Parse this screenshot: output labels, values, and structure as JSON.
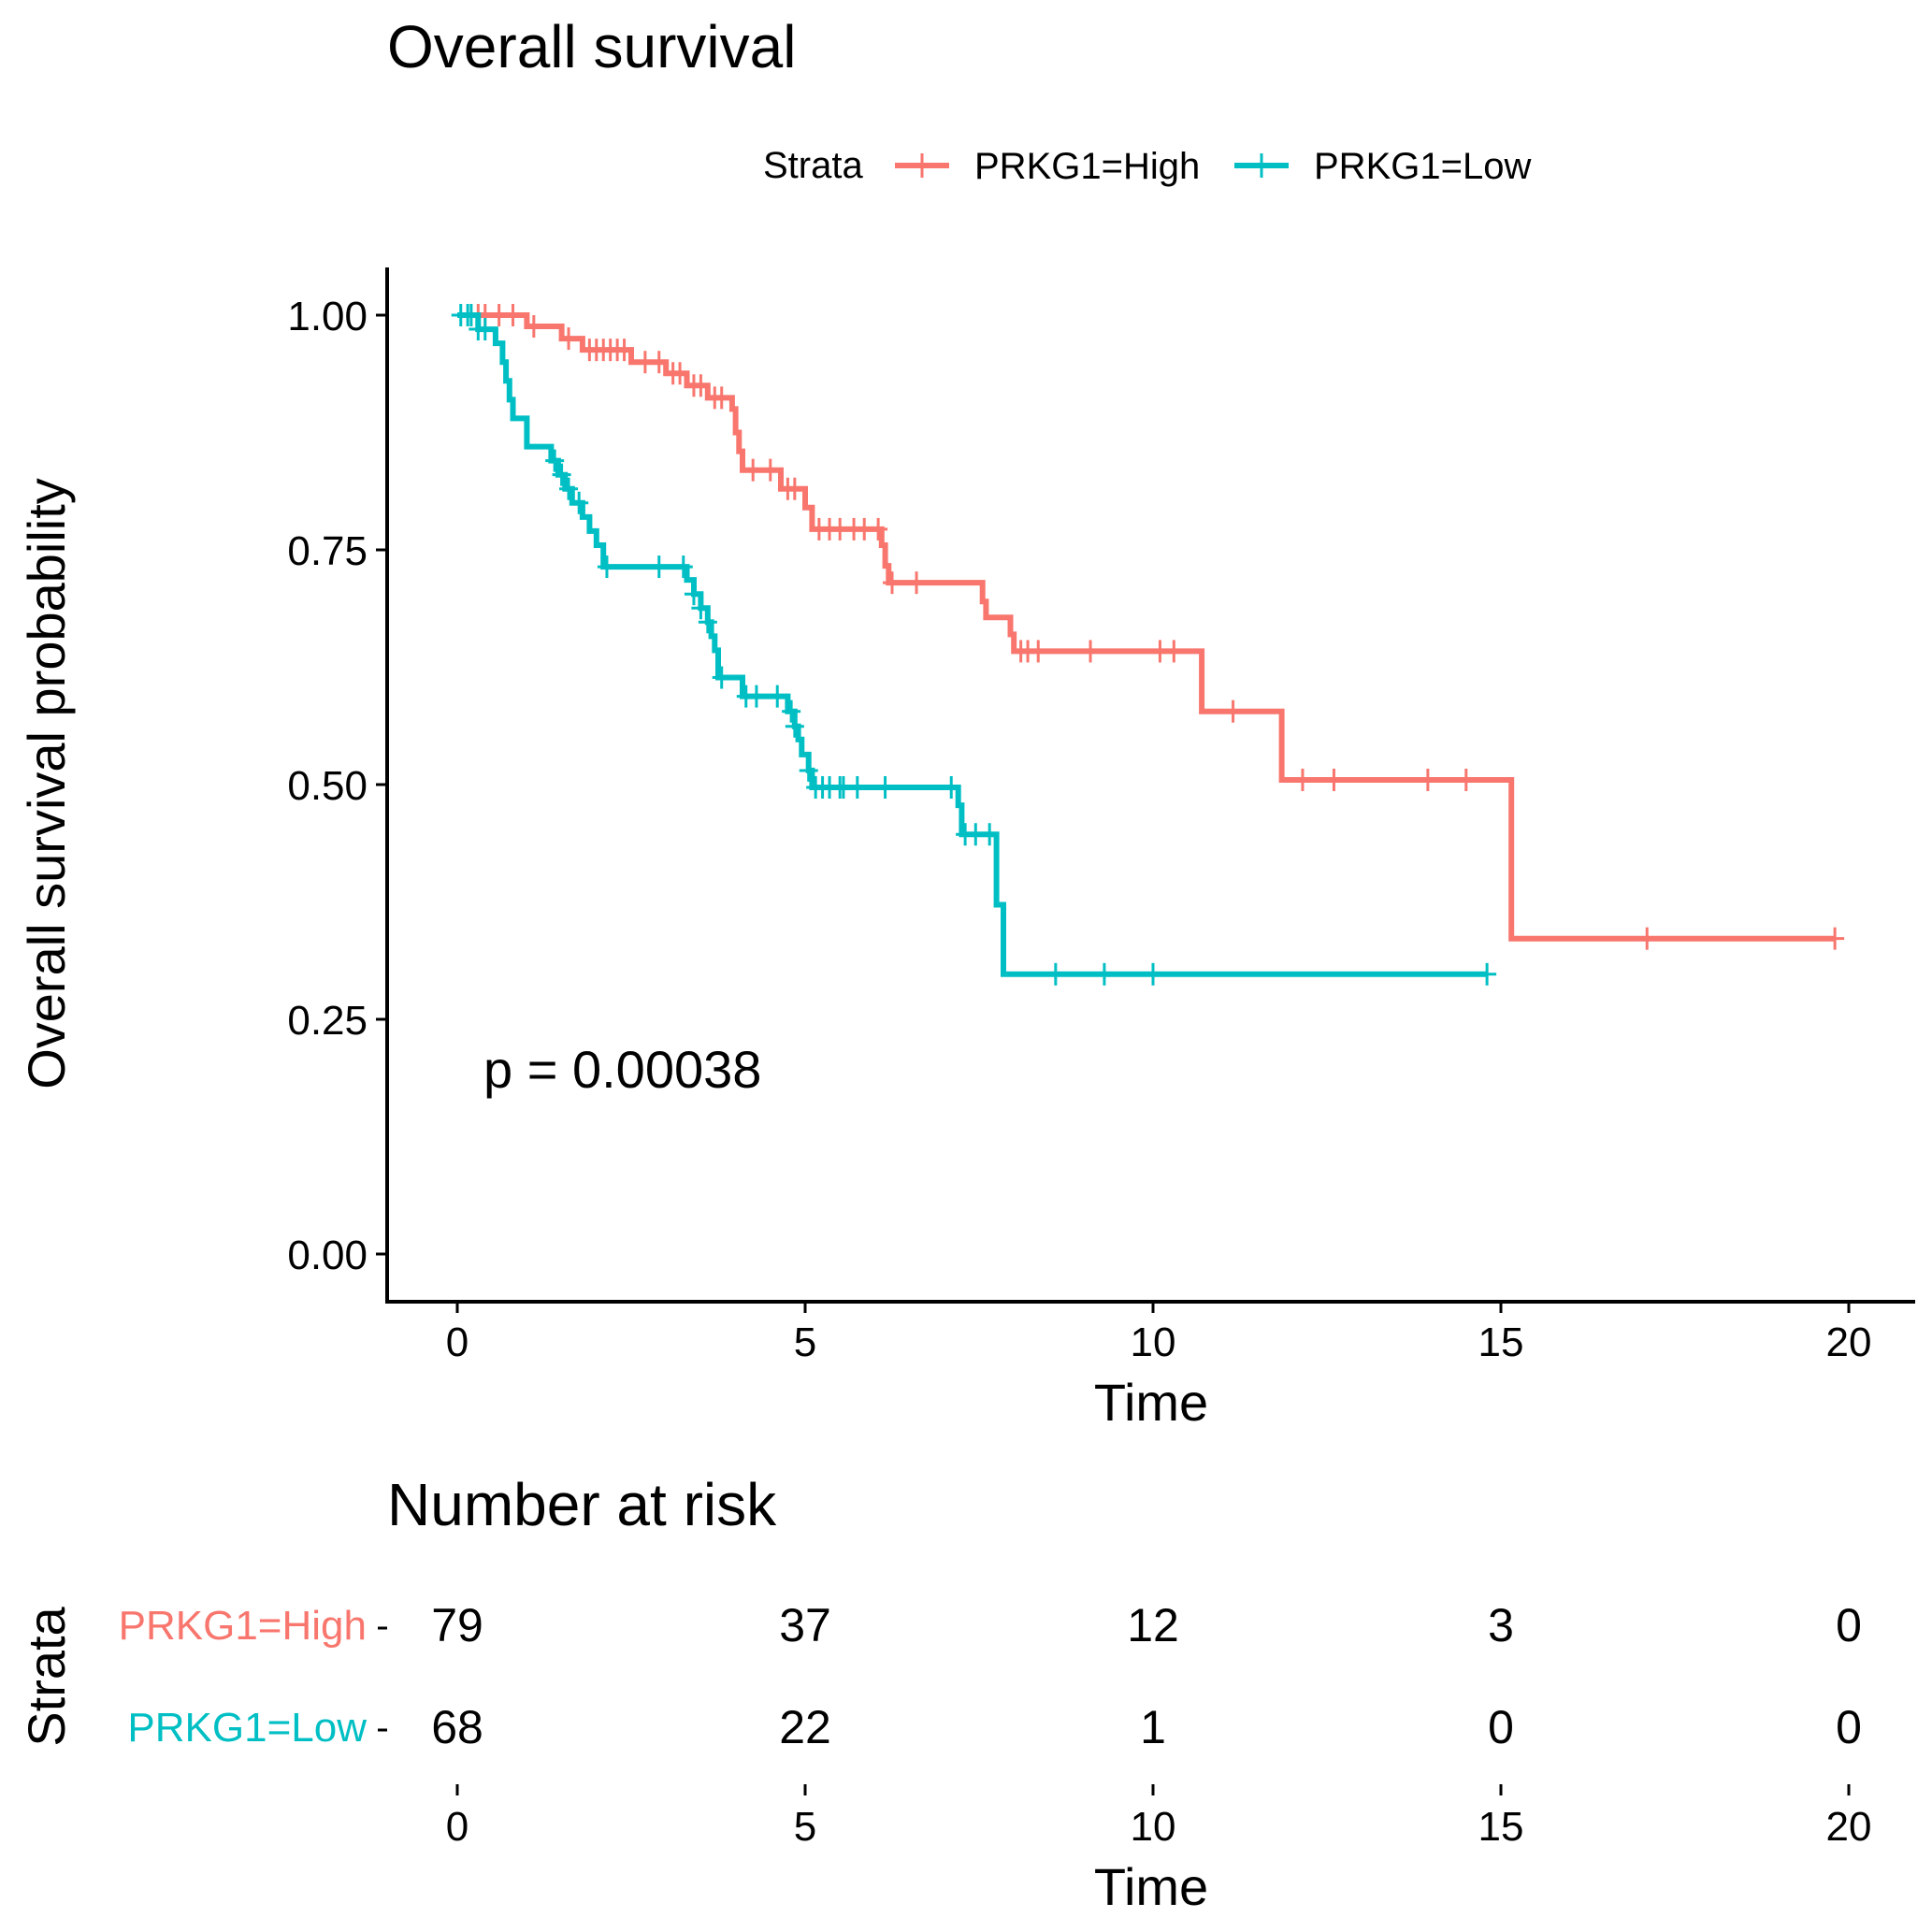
{
  "chart_data": {
    "type": "line",
    "subtype": "kaplan-meier",
    "title": "Overall survival",
    "xlabel": "Time",
    "ylabel": "Overall survival probability",
    "xlim": [
      -1,
      21
    ],
    "ylim": [
      -0.05,
      1.05
    ],
    "xticks": [
      0,
      5,
      10,
      15,
      20
    ],
    "yticks": [
      0.0,
      0.25,
      0.5,
      0.75,
      1.0
    ],
    "ytick_labels": [
      "0.00",
      "0.25",
      "0.50",
      "0.75",
      "1.00"
    ],
    "grid": false,
    "legend": {
      "title": "Strata",
      "position": "top",
      "entries": [
        "PRKG1=High",
        "PRKG1=Low"
      ]
    },
    "annotation": "p = 0.00038",
    "annotation_pos": {
      "x": 0.4,
      "y": 0.19
    },
    "series": [
      {
        "name": "PRKG1=High",
        "color": "#F8766D",
        "steps": [
          [
            0,
            1.0
          ],
          [
            1.0,
            0.988
          ],
          [
            1.5,
            0.975
          ],
          [
            1.8,
            0.963
          ],
          [
            2.5,
            0.95
          ],
          [
            3.0,
            0.938
          ],
          [
            3.3,
            0.925
          ],
          [
            3.6,
            0.912
          ],
          [
            3.95,
            0.9
          ],
          [
            4.0,
            0.875
          ],
          [
            4.05,
            0.855
          ],
          [
            4.1,
            0.835
          ],
          [
            4.65,
            0.815
          ],
          [
            5.0,
            0.795
          ],
          [
            5.1,
            0.772
          ],
          [
            6.1,
            0.755
          ],
          [
            6.15,
            0.733
          ],
          [
            6.2,
            0.715
          ],
          [
            7.55,
            0.695
          ],
          [
            7.6,
            0.678
          ],
          [
            7.95,
            0.66
          ],
          [
            8.0,
            0.642
          ],
          [
            10.7,
            0.578
          ],
          [
            11.85,
            0.505
          ],
          [
            15.15,
            0.336
          ],
          [
            19.8,
            0.336
          ]
        ],
        "censor_x": [
          0.3,
          0.4,
          0.6,
          0.8,
          1.1,
          1.6,
          1.9,
          2.0,
          2.1,
          2.2,
          2.3,
          2.4,
          2.7,
          2.9,
          3.1,
          3.2,
          3.4,
          3.5,
          3.7,
          3.8,
          4.25,
          4.5,
          4.75,
          4.85,
          5.2,
          5.35,
          5.5,
          5.7,
          5.85,
          6.05,
          6.25,
          6.6,
          8.1,
          8.2,
          8.35,
          9.1,
          10.1,
          10.3,
          11.15,
          12.15,
          12.6,
          13.95,
          14.5,
          17.1,
          19.8
        ]
      },
      {
        "name": "PRKG1=Low",
        "color": "#00BFC4",
        "steps": [
          [
            0,
            1.0
          ],
          [
            0.3,
            0.985
          ],
          [
            0.55,
            0.97
          ],
          [
            0.65,
            0.95
          ],
          [
            0.7,
            0.93
          ],
          [
            0.75,
            0.91
          ],
          [
            0.8,
            0.89
          ],
          [
            1.0,
            0.86
          ],
          [
            1.35,
            0.845
          ],
          [
            1.45,
            0.83
          ],
          [
            1.55,
            0.815
          ],
          [
            1.65,
            0.8
          ],
          [
            1.8,
            0.785
          ],
          [
            1.9,
            0.77
          ],
          [
            2.0,
            0.755
          ],
          [
            2.1,
            0.732
          ],
          [
            3.3,
            0.718
          ],
          [
            3.4,
            0.703
          ],
          [
            3.5,
            0.688
          ],
          [
            3.6,
            0.673
          ],
          [
            3.65,
            0.658
          ],
          [
            3.7,
            0.643
          ],
          [
            3.75,
            0.614
          ],
          [
            4.1,
            0.594
          ],
          [
            4.75,
            0.578
          ],
          [
            4.85,
            0.562
          ],
          [
            4.9,
            0.548
          ],
          [
            4.95,
            0.532
          ],
          [
            5.05,
            0.515
          ],
          [
            5.1,
            0.497
          ],
          [
            7.2,
            0.478
          ],
          [
            7.25,
            0.447
          ],
          [
            7.75,
            0.372
          ],
          [
            7.85,
            0.298
          ],
          [
            14.8,
            0.298
          ]
        ],
        "censor_x": [
          0.05,
          0.15,
          0.2,
          0.3,
          0.4,
          1.4,
          1.5,
          1.6,
          1.75,
          2.15,
          2.9,
          3.25,
          3.4,
          3.5,
          3.6,
          3.8,
          4.15,
          4.3,
          4.6,
          4.8,
          4.85,
          5.05,
          5.15,
          5.25,
          5.35,
          5.5,
          5.55,
          5.75,
          6.15,
          7.1,
          7.3,
          7.45,
          7.65,
          8.6,
          9.3,
          10.0,
          14.8
        ]
      }
    ],
    "risk_table": {
      "title": "Number at risk",
      "ylabel": "Strata",
      "xlabel": "Time",
      "times": [
        0,
        5,
        10,
        15,
        20
      ],
      "rows": [
        {
          "label": "PRKG1=High",
          "color": "#F8766D",
          "counts": [
            79,
            37,
            12,
            3,
            0
          ]
        },
        {
          "label": "PRKG1=Low",
          "color": "#00BFC4",
          "counts": [
            68,
            22,
            1,
            0,
            0
          ]
        }
      ]
    }
  }
}
